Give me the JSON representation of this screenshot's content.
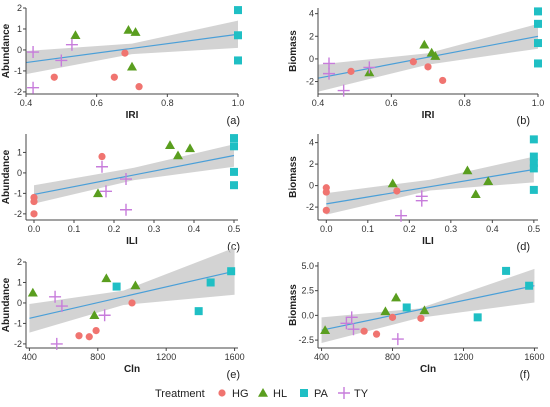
{
  "chart_data": [
    {
      "type": "scatter",
      "panel_label": "(a)",
      "xlabel": "IRI",
      "ylabel": "Abundance",
      "xlim": [
        0.4,
        1.0
      ],
      "ylim": [
        -2.1,
        2.0
      ],
      "xticks": [
        0.4,
        0.6,
        0.8,
        1.0
      ],
      "xtick_labels": [
        "0.4",
        "0.6",
        "0.8",
        "1.0"
      ],
      "yticks": [
        -2,
        -1,
        0,
        1,
        2
      ],
      "ytick_labels": [
        "-2",
        "-1",
        "0",
        "1",
        "2"
      ],
      "series": [
        {
          "name": "HG",
          "points": [
            [
              0.48,
              -1.3
            ],
            [
              0.65,
              -1.3
            ],
            [
              0.68,
              -0.15
            ],
            [
              0.72,
              -1.75
            ]
          ]
        },
        {
          "name": "HL",
          "points": [
            [
              0.54,
              0.7
            ],
            [
              0.69,
              0.95
            ],
            [
              0.71,
              0.85
            ],
            [
              0.7,
              -0.8
            ]
          ]
        },
        {
          "name": "PA",
          "points": [
            [
              1.0,
              1.9
            ],
            [
              1.0,
              0.7
            ],
            [
              1.0,
              -0.5
            ]
          ]
        },
        {
          "name": "TY",
          "points": [
            [
              0.42,
              -0.1
            ],
            [
              0.42,
              -1.8
            ],
            [
              0.5,
              -0.5
            ],
            [
              0.53,
              0.25
            ]
          ]
        }
      ],
      "trend": {
        "x": [
          0.4,
          1.0
        ],
        "y": [
          -0.6,
          0.75
        ]
      },
      "ci": {
        "x": [
          0.4,
          0.7,
          1.0
        ],
        "lower": [
          -1.15,
          -0.2,
          0.1
        ],
        "upper": [
          -0.05,
          0.3,
          1.4
        ]
      }
    },
    {
      "type": "scatter",
      "panel_label": "(b)",
      "xlabel": "IRI",
      "ylabel": "Biomass",
      "xlim": [
        0.4,
        1.0
      ],
      "ylim": [
        -3.1,
        4.5
      ],
      "xticks": [
        0.4,
        0.6,
        0.8,
        1.0
      ],
      "xtick_labels": [
        "0.4",
        "0.6",
        "0.8",
        "1.0"
      ],
      "yticks": [
        -2,
        0,
        2,
        4
      ],
      "ytick_labels": [
        "-2",
        "0",
        "2",
        "4"
      ],
      "series": [
        {
          "name": "HG",
          "points": [
            [
              0.49,
              -1.1
            ],
            [
              0.66,
              -0.25
            ],
            [
              0.7,
              -0.7
            ],
            [
              0.74,
              -1.9
            ]
          ]
        },
        {
          "name": "HL",
          "points": [
            [
              0.54,
              -1.2
            ],
            [
              0.69,
              1.25
            ],
            [
              0.71,
              0.55
            ],
            [
              0.72,
              0.25
            ]
          ]
        },
        {
          "name": "PA",
          "points": [
            [
              1.0,
              4.2
            ],
            [
              1.0,
              3.1
            ],
            [
              1.0,
              1.4
            ],
            [
              1.0,
              -0.4
            ]
          ]
        },
        {
          "name": "TY",
          "points": [
            [
              0.43,
              -0.4
            ],
            [
              0.43,
              -1.3
            ],
            [
              0.47,
              -2.8
            ],
            [
              0.54,
              -0.75
            ]
          ]
        }
      ],
      "trend": {
        "x": [
          0.4,
          1.0
        ],
        "y": [
          -1.7,
          2.0
        ]
      },
      "ci": {
        "x": [
          0.4,
          0.7,
          1.0
        ],
        "lower": [
          -2.9,
          -0.5,
          0.9
        ],
        "upper": [
          -0.5,
          0.5,
          3.1
        ]
      }
    },
    {
      "type": "scatter",
      "panel_label": "(c)",
      "xlabel": "ILI",
      "ylabel": "Abundance",
      "xlim": [
        -0.02,
        0.51
      ],
      "ylim": [
        -2.3,
        1.9
      ],
      "xticks": [
        0.0,
        0.1,
        0.2,
        0.3,
        0.4,
        0.5
      ],
      "xtick_labels": [
        "0.0",
        "0.1",
        "0.2",
        "0.3",
        "0.4",
        "0.5"
      ],
      "yticks": [
        -2,
        -1,
        0,
        1
      ],
      "ytick_labels": [
        "-2",
        "-1",
        "0",
        "1"
      ],
      "series": [
        {
          "name": "HG",
          "points": [
            [
              0.0,
              -1.2
            ],
            [
              0.0,
              -1.4
            ],
            [
              0.0,
              -2.0
            ],
            [
              0.17,
              0.8
            ]
          ]
        },
        {
          "name": "HL",
          "points": [
            [
              0.16,
              -1.0
            ],
            [
              0.34,
              1.35
            ],
            [
              0.36,
              0.85
            ],
            [
              0.39,
              1.2
            ]
          ]
        },
        {
          "name": "PA",
          "points": [
            [
              0.5,
              1.7
            ],
            [
              0.5,
              1.3
            ],
            [
              0.5,
              0.05
            ],
            [
              0.5,
              -0.6
            ]
          ]
        },
        {
          "name": "TY",
          "points": [
            [
              0.17,
              0.3
            ],
            [
              0.18,
              -0.9
            ],
            [
              0.23,
              -0.3
            ],
            [
              0.23,
              -1.8
            ]
          ]
        }
      ],
      "trend": {
        "x": [
          0.0,
          0.5
        ],
        "y": [
          -1.05,
          0.85
        ]
      },
      "ci": {
        "x": [
          0.0,
          0.25,
          0.5
        ],
        "lower": [
          -1.5,
          -0.35,
          0.3
        ],
        "upper": [
          -0.6,
          0.25,
          1.4
        ]
      }
    },
    {
      "type": "scatter",
      "panel_label": "(d)",
      "xlabel": "ILI",
      "ylabel": "Biomass",
      "xlim": [
        -0.02,
        0.51
      ],
      "ylim": [
        -3.2,
        4.8
      ],
      "xticks": [
        0.0,
        0.1,
        0.2,
        0.3,
        0.4,
        0.5
      ],
      "xtick_labels": [
        "0.0",
        "0.1",
        "0.2",
        "0.3",
        "0.4",
        "0.5"
      ],
      "yticks": [
        -2,
        0,
        2,
        4
      ],
      "ytick_labels": [
        "-2",
        "0",
        "2",
        "4"
      ],
      "series": [
        {
          "name": "HG",
          "points": [
            [
              0.0,
              -0.2
            ],
            [
              0.0,
              -0.6
            ],
            [
              0.0,
              -2.3
            ],
            [
              0.17,
              -0.5
            ]
          ]
        },
        {
          "name": "HL",
          "points": [
            [
              0.16,
              0.2
            ],
            [
              0.34,
              1.4
            ],
            [
              0.36,
              -0.8
            ],
            [
              0.39,
              0.4
            ]
          ]
        },
        {
          "name": "PA",
          "points": [
            [
              0.5,
              4.3
            ],
            [
              0.5,
              2.7
            ],
            [
              0.5,
              2.1
            ],
            [
              0.5,
              1.6
            ],
            [
              0.5,
              -0.4
            ]
          ]
        },
        {
          "name": "TY",
          "points": [
            [
              0.18,
              -2.8
            ],
            [
              0.23,
              -1.0
            ],
            [
              0.23,
              -1.4
            ]
          ]
        }
      ],
      "trend": {
        "x": [
          0.0,
          0.5
        ],
        "y": [
          -1.7,
          1.5
        ]
      },
      "ci": {
        "x": [
          0.0,
          0.25,
          0.5
        ],
        "lower": [
          -2.7,
          -0.45,
          0.3
        ],
        "upper": [
          -0.7,
          0.55,
          2.7
        ]
      }
    },
    {
      "type": "scatter",
      "panel_label": "(e)",
      "xlabel": "Cln",
      "ylabel": "Abundance",
      "xlim": [
        380,
        1620
      ],
      "ylim": [
        -2.2,
        2.0
      ],
      "xticks": [
        400,
        800,
        1200,
        1600
      ],
      "xtick_labels": [
        "400",
        "800",
        "1200",
        "1600"
      ],
      "yticks": [
        -2,
        -1,
        0,
        1,
        2
      ],
      "ytick_labels": [
        "-2",
        "-1",
        "0",
        "1",
        "2"
      ],
      "series": [
        {
          "name": "HG",
          "points": [
            [
              690,
              -1.6
            ],
            [
              750,
              -1.65
            ],
            [
              790,
              -1.35
            ],
            [
              1000,
              0.0
            ]
          ]
        },
        {
          "name": "HL",
          "points": [
            [
              420,
              0.5
            ],
            [
              780,
              -0.6
            ],
            [
              850,
              1.2
            ],
            [
              1020,
              0.85
            ]
          ]
        },
        {
          "name": "PA",
          "points": [
            [
              910,
              0.8
            ],
            [
              1390,
              -0.4
            ],
            [
              1460,
              1.0
            ],
            [
              1580,
              1.55
            ]
          ]
        },
        {
          "name": "TY",
          "points": [
            [
              550,
              0.3
            ],
            [
              560,
              -2.0
            ],
            [
              590,
              -0.15
            ],
            [
              840,
              -0.6
            ]
          ]
        }
      ],
      "trend": {
        "x": [
          400,
          1600
        ],
        "y": [
          -0.75,
          1.55
        ]
      },
      "ci": {
        "x": [
          400,
          950,
          1600
        ],
        "lower": [
          -1.45,
          -0.1,
          0.4
        ],
        "upper": [
          -0.05,
          0.6,
          2.7
        ]
      }
    },
    {
      "type": "scatter",
      "panel_label": "(f)",
      "xlabel": "Cln",
      "ylabel": "Biomass",
      "xlim": [
        380,
        1620
      ],
      "ylim": [
        -3.3,
        5.4
      ],
      "xticks": [
        400,
        800,
        1200,
        1600
      ],
      "xtick_labels": [
        "400",
        "800",
        "1200",
        "1600"
      ],
      "yticks": [
        -2.5,
        0.0,
        2.5,
        5.0
      ],
      "ytick_labels": [
        "-2.5",
        "0.0",
        "2.5",
        "5.0"
      ],
      "series": [
        {
          "name": "HG",
          "points": [
            [
              640,
              -1.6
            ],
            [
              710,
              -1.9
            ],
            [
              800,
              -0.2
            ],
            [
              960,
              -0.3
            ]
          ]
        },
        {
          "name": "HL",
          "points": [
            [
              420,
              -1.5
            ],
            [
              760,
              0.4
            ],
            [
              820,
              1.8
            ],
            [
              980,
              0.5
            ]
          ]
        },
        {
          "name": "PA",
          "points": [
            [
              880,
              0.8
            ],
            [
              1280,
              -0.2
            ],
            [
              1440,
              4.5
            ],
            [
              1570,
              3.0
            ]
          ]
        },
        {
          "name": "TY",
          "points": [
            [
              540,
              -0.8
            ],
            [
              570,
              -0.2
            ],
            [
              580,
              -1.4
            ],
            [
              830,
              -2.4
            ]
          ]
        }
      ],
      "trend": {
        "x": [
          400,
          1600
        ],
        "y": [
          -1.5,
          3.0
        ]
      },
      "ci": {
        "x": [
          400,
          950,
          1600
        ],
        "lower": [
          -2.8,
          -0.25,
          1.3
        ],
        "upper": [
          -0.2,
          0.7,
          4.7
        ]
      }
    }
  ],
  "legend": {
    "title": "Treatment",
    "items": [
      {
        "name": "HG",
        "color": "#f07470",
        "marker": "circle"
      },
      {
        "name": "HL",
        "color": "#5a9e1f",
        "marker": "triangle"
      },
      {
        "name": "PA",
        "color": "#1fbfc4",
        "marker": "square"
      },
      {
        "name": "TY",
        "color": "#c77cdb",
        "marker": "plus"
      }
    ]
  },
  "colors": {
    "trend_line": "#4a9fd8",
    "ci_band": "#c8c8c8",
    "axis": "#444444"
  }
}
